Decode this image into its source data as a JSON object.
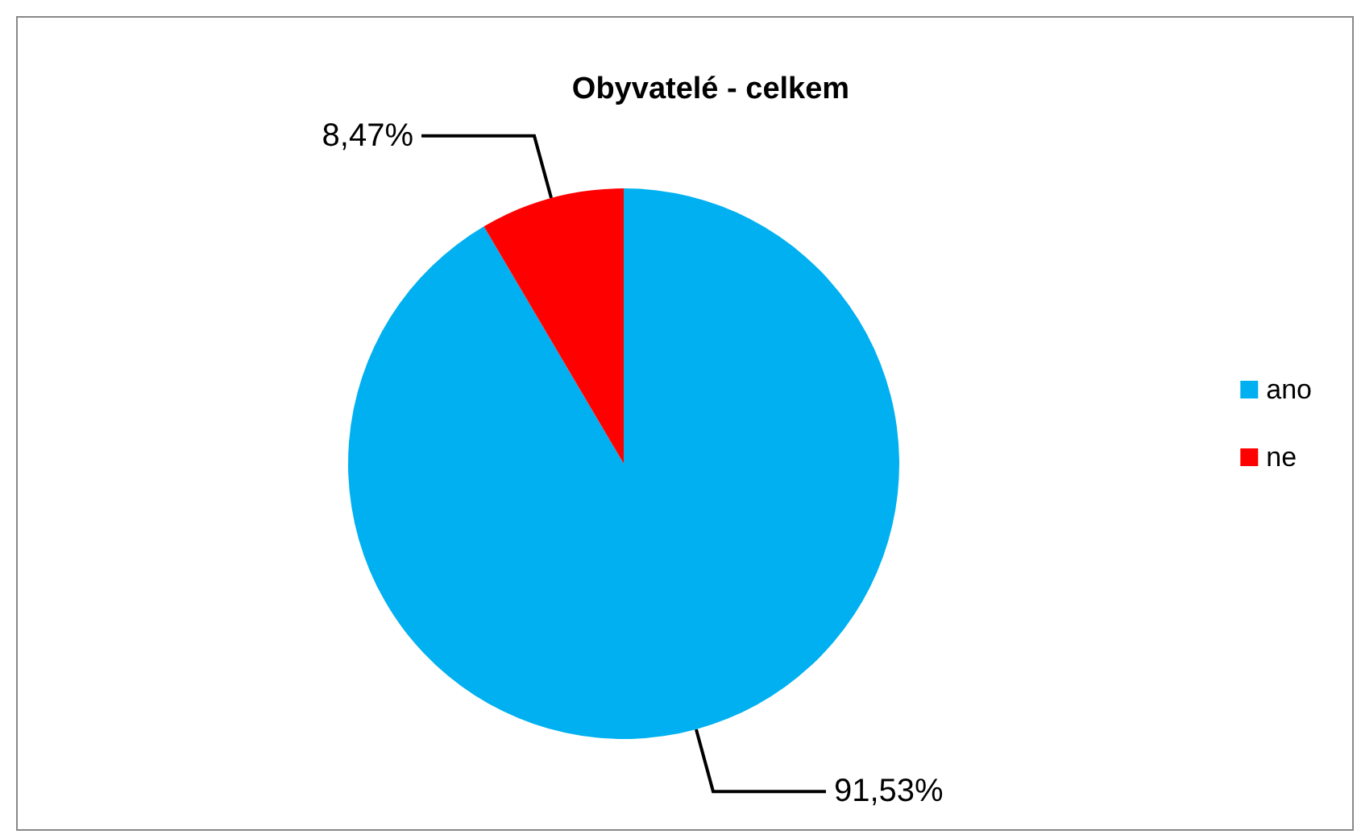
{
  "chart_data": {
    "type": "pie",
    "title": "Obyvatelé - celkem",
    "categories": [
      "ano",
      "ne"
    ],
    "values": [
      91.53,
      8.47
    ],
    "colors": [
      "#00b0f0",
      "#ff0000"
    ],
    "value_labels": [
      "91,53%",
      "8,47%"
    ],
    "legend": "right"
  }
}
